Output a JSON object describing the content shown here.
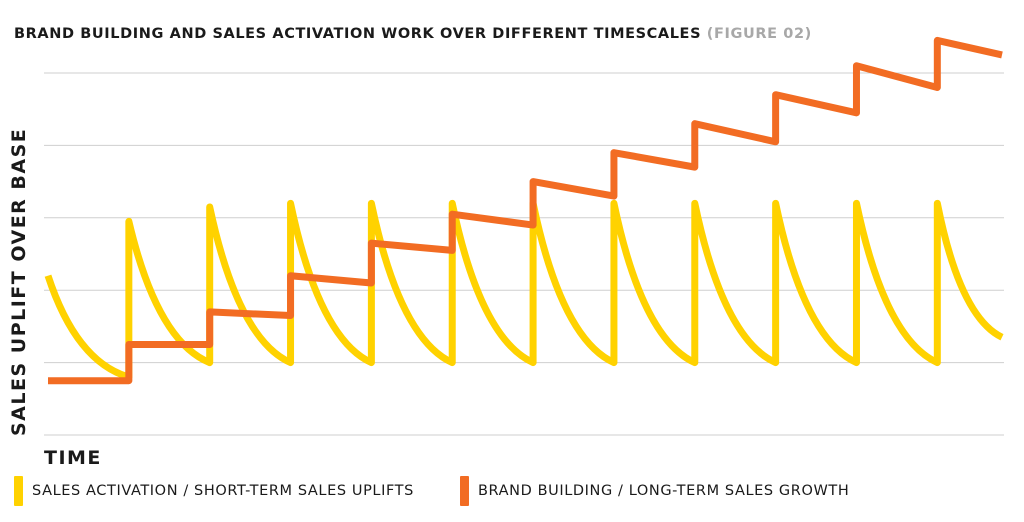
{
  "chart_data": {
    "type": "line",
    "title": "BRAND BUILDING AND SALES ACTIVATION WORK OVER DIFFERENT TIMESCALES",
    "figure_label": "(FIGURE 02)",
    "xlabel": "TIME",
    "ylabel": "SALES UPLIFT OVER BASE",
    "ylim": [
      0,
      5
    ],
    "grid": true,
    "legend_position": "bottom",
    "series": [
      {
        "name": "SALES ACTIVATION / SHORT-TERM SALES UPLIFTS",
        "color": "#FFD200",
        "values": [
          {
            "x": 0.0,
            "y": 2.2
          },
          {
            "x": 1.0,
            "y": 0.8
          },
          {
            "x": 1.0,
            "y": 2.95
          },
          {
            "x": 2.0,
            "y": 1.0
          },
          {
            "x": 2.0,
            "y": 3.15
          },
          {
            "x": 3.0,
            "y": 1.0
          },
          {
            "x": 3.0,
            "y": 3.2
          },
          {
            "x": 4.0,
            "y": 1.0
          },
          {
            "x": 4.0,
            "y": 3.2
          },
          {
            "x": 5.0,
            "y": 1.0
          },
          {
            "x": 5.0,
            "y": 3.2
          },
          {
            "x": 6.0,
            "y": 1.0
          },
          {
            "x": 6.0,
            "y": 3.2
          },
          {
            "x": 7.0,
            "y": 1.0
          },
          {
            "x": 7.0,
            "y": 3.2
          },
          {
            "x": 8.0,
            "y": 1.0
          },
          {
            "x": 8.0,
            "y": 3.2
          },
          {
            "x": 9.0,
            "y": 1.0
          },
          {
            "x": 9.0,
            "y": 3.2
          },
          {
            "x": 10.0,
            "y": 1.0
          },
          {
            "x": 10.0,
            "y": 3.2
          },
          {
            "x": 11.0,
            "y": 1.0
          },
          {
            "x": 11.0,
            "y": 3.2
          },
          {
            "x": 11.8,
            "y": 1.35
          }
        ]
      },
      {
        "name": "BRAND BUILDING / LONG-TERM SALES GROWTH",
        "color": "#F26C23",
        "values": [
          {
            "x": 0.0,
            "y": 0.75
          },
          {
            "x": 1.0,
            "y": 0.75
          },
          {
            "x": 1.0,
            "y": 1.25
          },
          {
            "x": 2.0,
            "y": 1.25
          },
          {
            "x": 2.0,
            "y": 1.7
          },
          {
            "x": 3.0,
            "y": 1.65
          },
          {
            "x": 3.0,
            "y": 2.2
          },
          {
            "x": 4.0,
            "y": 2.1
          },
          {
            "x": 4.0,
            "y": 2.65
          },
          {
            "x": 5.0,
            "y": 2.55
          },
          {
            "x": 5.0,
            "y": 3.05
          },
          {
            "x": 6.0,
            "y": 2.9
          },
          {
            "x": 6.0,
            "y": 3.5
          },
          {
            "x": 7.0,
            "y": 3.3
          },
          {
            "x": 7.0,
            "y": 3.9
          },
          {
            "x": 8.0,
            "y": 3.7
          },
          {
            "x": 8.0,
            "y": 4.3
          },
          {
            "x": 9.0,
            "y": 4.05
          },
          {
            "x": 9.0,
            "y": 4.7
          },
          {
            "x": 10.0,
            "y": 4.45
          },
          {
            "x": 10.0,
            "y": 5.1
          },
          {
            "x": 11.0,
            "y": 4.8
          },
          {
            "x": 11.0,
            "y": 5.45
          },
          {
            "x": 11.8,
            "y": 5.25
          }
        ]
      }
    ]
  }
}
